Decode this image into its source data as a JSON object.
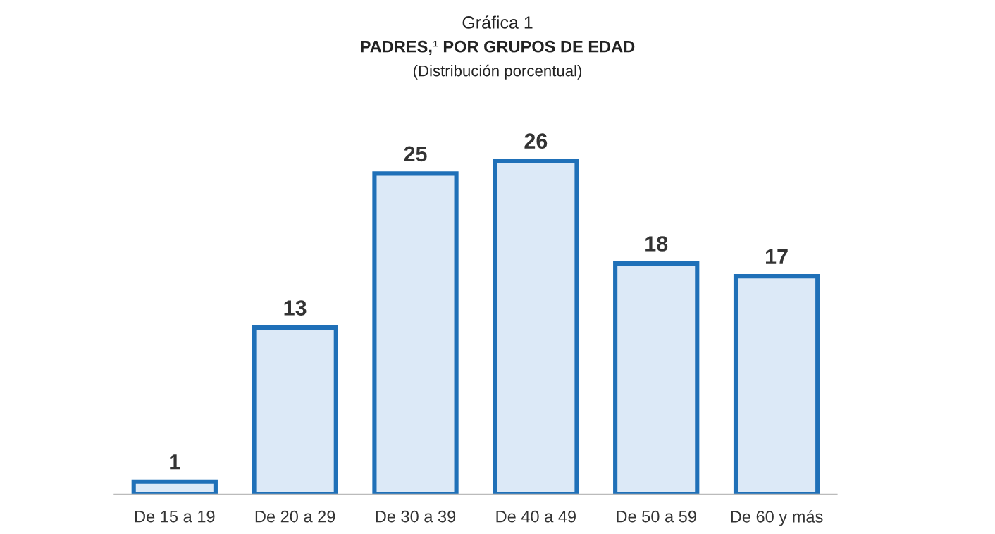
{
  "chart_data": {
    "type": "bar",
    "title": "Gráfica 1",
    "subtitle": "PADRES,¹ POR GRUPOS DE EDAD",
    "annotations": [
      "(Distribución porcentual)"
    ],
    "categories": [
      "De 15 a 19",
      "De 20 a 29",
      "De 30 a 39",
      "De 40 a 49",
      "De 50 a 59",
      "De 60 y más"
    ],
    "values": [
      1,
      13,
      25,
      26,
      18,
      17
    ],
    "color": "#dce9f7",
    "data_labels": true,
    "grid": false,
    "legend": false
  }
}
